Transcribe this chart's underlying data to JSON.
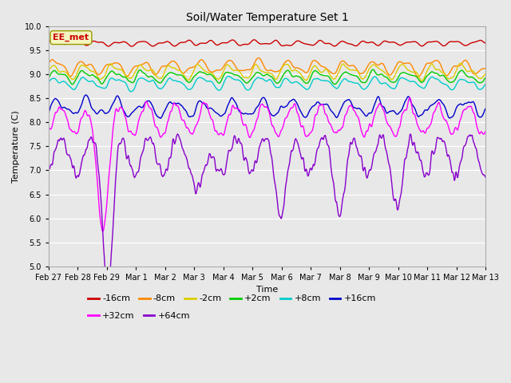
{
  "title": "Soil/Water Temperature Set 1",
  "xlabel": "Time",
  "ylabel": "Temperature (C)",
  "ylim": [
    5.0,
    10.0
  ],
  "yticks": [
    5.0,
    5.5,
    6.0,
    6.5,
    7.0,
    7.5,
    8.0,
    8.5,
    9.0,
    9.5,
    10.0
  ],
  "series_order": [
    "-16cm",
    "-8cm",
    "-2cm",
    "+2cm",
    "+8cm",
    "+16cm",
    "+32cm",
    "+64cm"
  ],
  "series_colors": {
    "-16cm": "#cc0000",
    "-8cm": "#ff8800",
    "-2cm": "#ddcc00",
    "+2cm": "#00cc00",
    "+8cm": "#00cccc",
    "+16cm": "#0000cc",
    "+32cm": "#ff00ff",
    "+64cm": "#8800cc"
  },
  "x_tick_labels": [
    "Feb 27",
    "Feb 28",
    "Feb 29",
    "Mar 1",
    "Mar 2",
    "Mar 3",
    "Mar 4",
    "Mar 5",
    "Mar 6",
    "Mar 7",
    "Mar 8",
    "Mar 9",
    "Mar 10",
    "Mar 11",
    "Mar 12",
    "Mar 13"
  ],
  "legend_label": "EE_met",
  "fig_facecolor": "#e8e8e8",
  "plot_facecolor": "#e8e8e8",
  "grid_color": "#ffffff",
  "linewidth": 1.0,
  "figsize": [
    6.4,
    4.8
  ],
  "dpi": 100
}
